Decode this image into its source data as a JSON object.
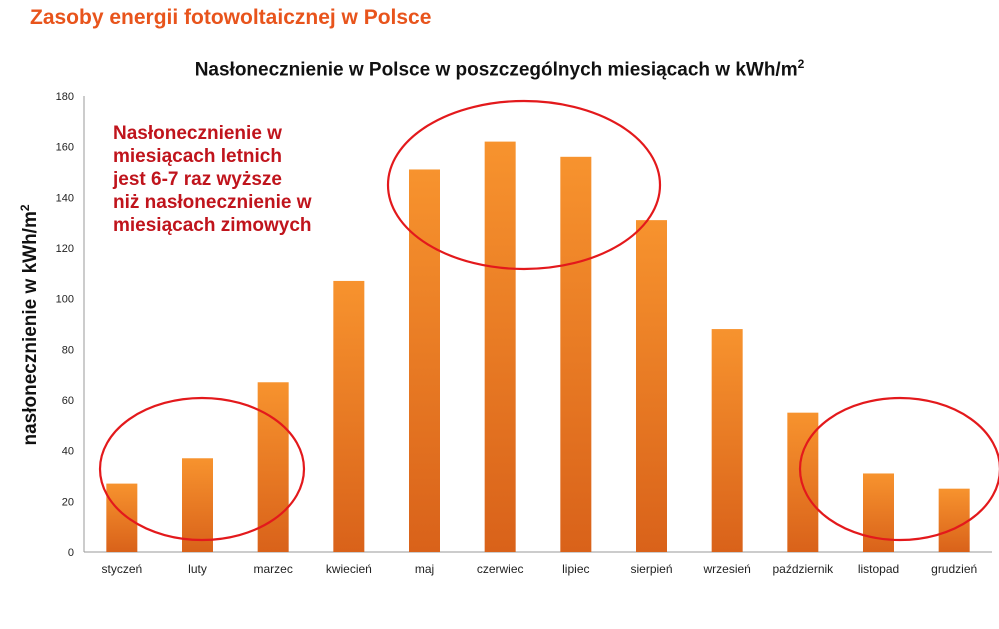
{
  "page": {
    "title": "Zasoby energii fotowoltaicznej w Polsce"
  },
  "chart_data": {
    "type": "bar",
    "title": "Nasłonecznienie w Polsce w poszczególnych miesiącach w kWh/m",
    "title_superscript": "2",
    "xlabel": "",
    "ylabel": "nasłonecznienie w kWh/m",
    "ylabel_superscript": "2",
    "categories": [
      "styczeń",
      "luty",
      "marzec",
      "kwiecień",
      "maj",
      "czerwiec",
      "lipiec",
      "sierpień",
      "wrzesień",
      "październik",
      "listopad",
      "grudzień"
    ],
    "values": [
      27,
      37,
      67,
      107,
      151,
      162,
      156,
      131,
      88,
      55,
      31,
      25
    ],
    "ylim": [
      0,
      180
    ],
    "yticks": [
      "0",
      "20",
      "40",
      "60",
      "80",
      "100",
      "120",
      "140",
      "160",
      "180"
    ],
    "grid": false,
    "legend": "none",
    "bar_color_top": "#f7932e",
    "bar_color_bottom": "#d9621a",
    "annotation": {
      "lines": [
        "Nasłonecznienie w",
        "miesiącach letnich",
        "jest 6-7 raz wyższe",
        "niż nasłonecznienie w",
        "miesiącach zimowych"
      ],
      "color": "#c0141c"
    },
    "highlight_color": "#e3191c"
  }
}
